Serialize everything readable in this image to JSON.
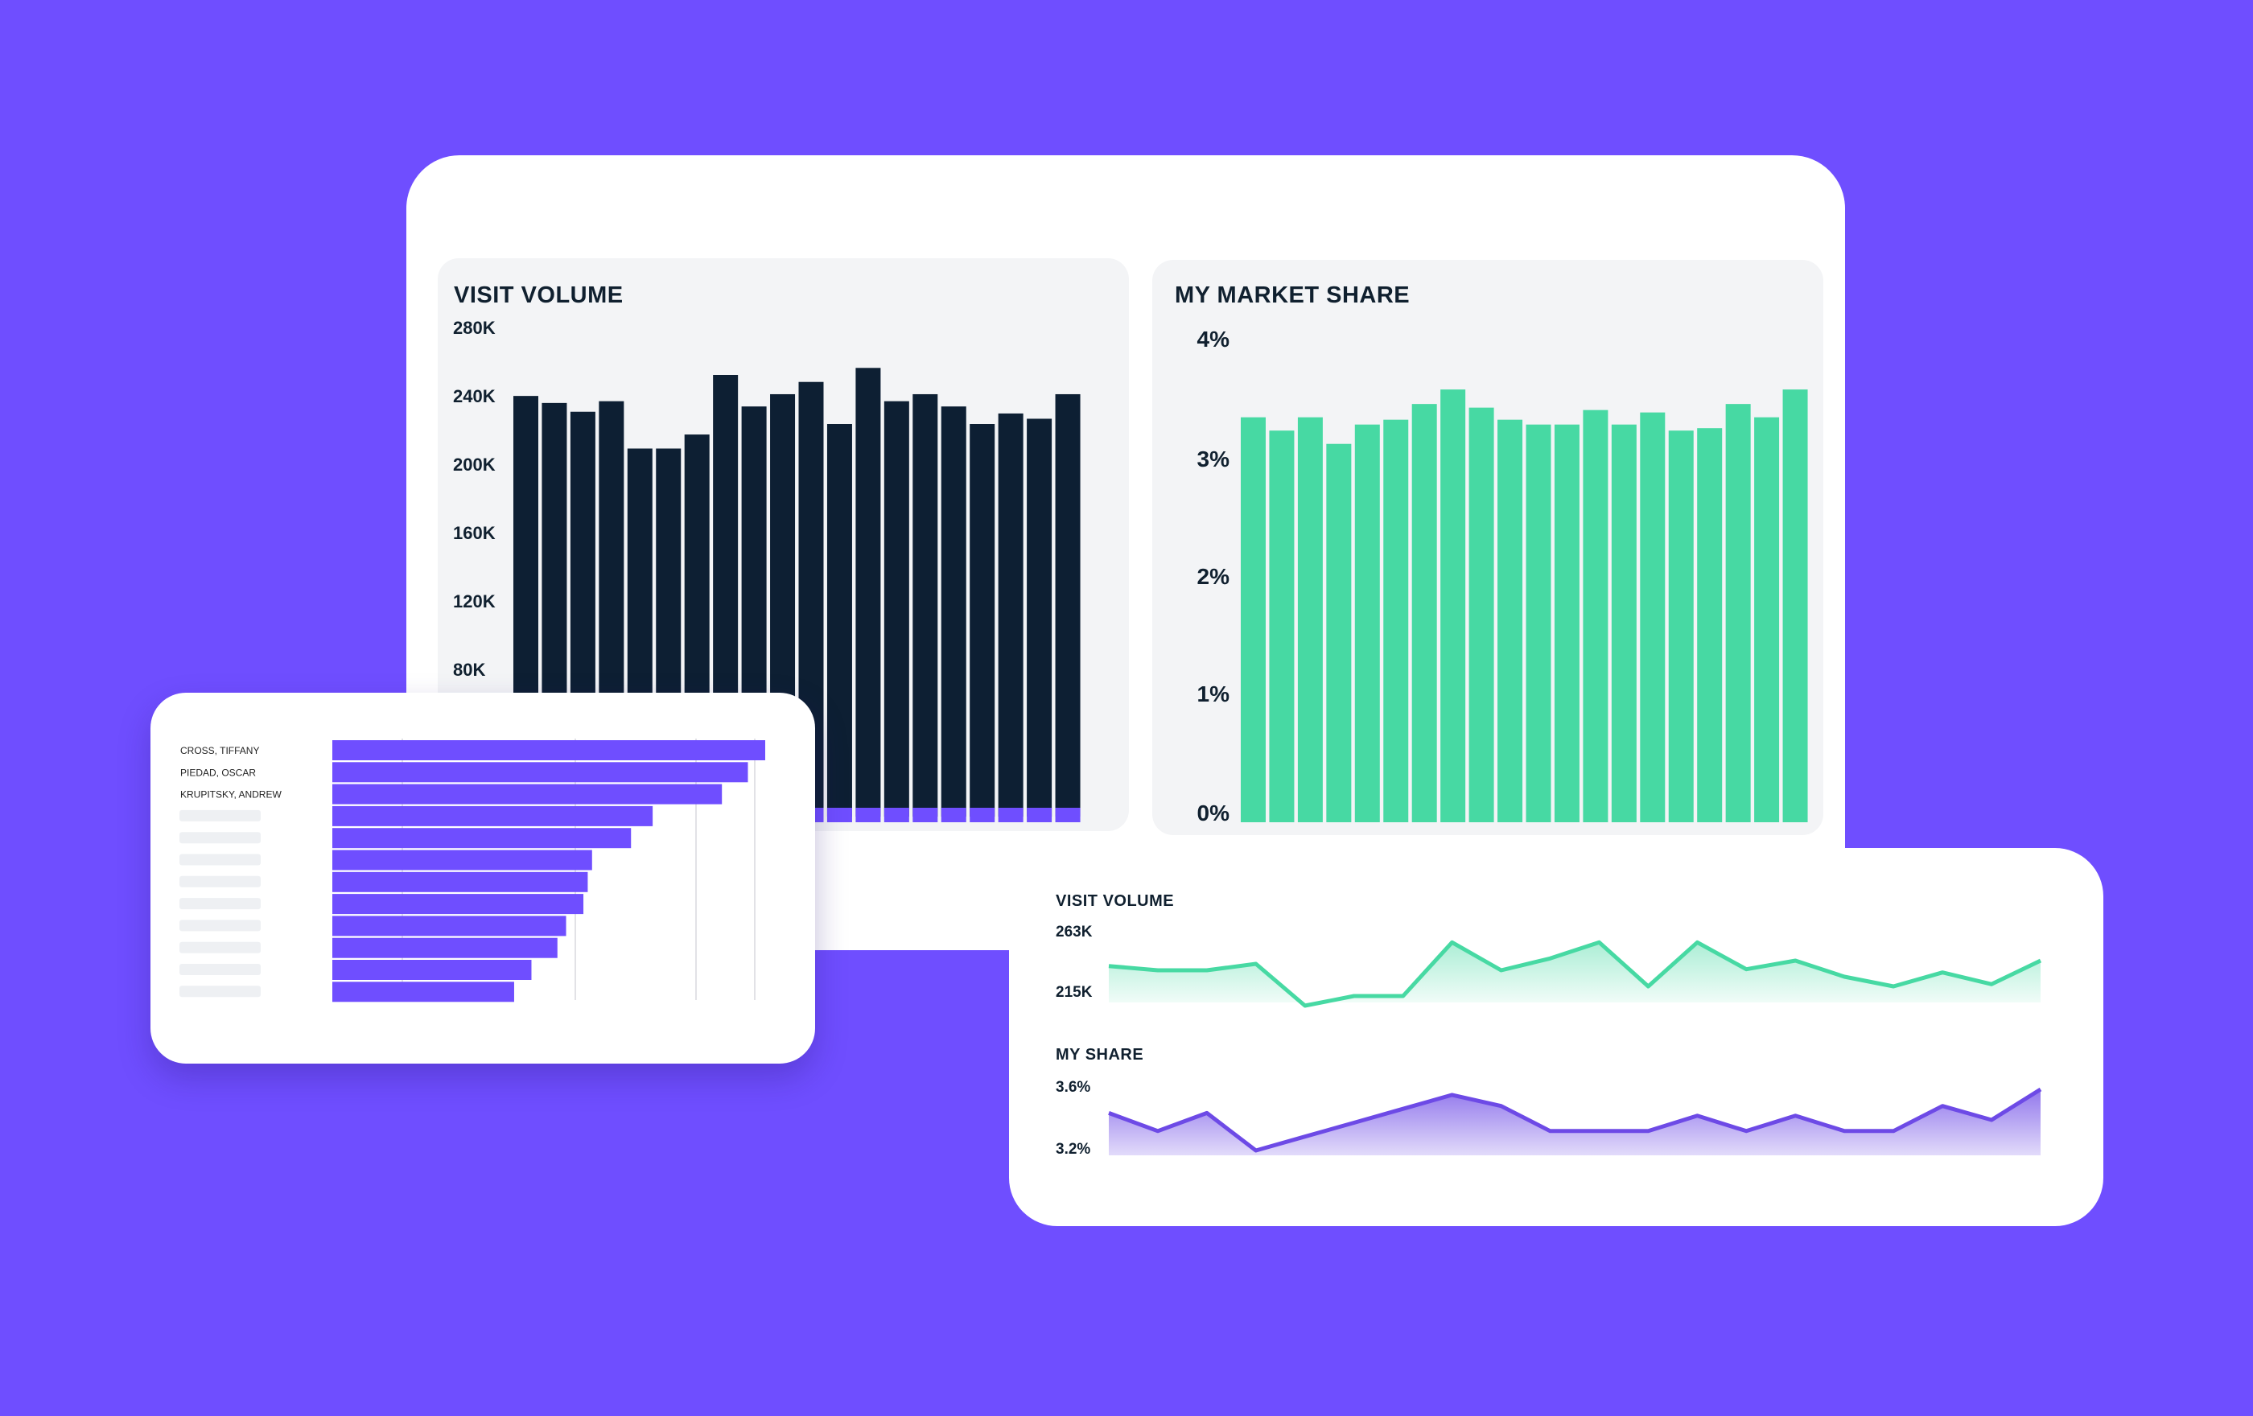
{
  "colors": {
    "background": "#6f4eff",
    "navy": "#0d1f33",
    "green": "#47d9a3",
    "purple": "#6f4eff",
    "trend_purple": "#6d4ae6"
  },
  "chart_data": [
    {
      "id": "visit-volume-bar",
      "type": "bar",
      "title": "VISIT VOLUME",
      "ytick_labels": [
        "280K",
        "240K",
        "200K",
        "160K",
        "120K",
        "80K"
      ],
      "ylim": [
        0,
        280000
      ],
      "values": [
        240000,
        236000,
        231000,
        237000,
        210000,
        210000,
        218000,
        252000,
        234000,
        241000,
        248000,
        224000,
        256000,
        237000,
        241000,
        234000,
        224000,
        230000,
        227000,
        241000
      ],
      "color": "#0d1f33"
    },
    {
      "id": "market-share-bar",
      "type": "bar",
      "title": "MY MARKET SHARE",
      "ytick_labels": [
        "4%",
        "3%",
        "2%",
        "1%",
        "0%"
      ],
      "ylim": [
        0,
        4
      ],
      "values": [
        3.35,
        3.24,
        3.35,
        3.13,
        3.29,
        3.33,
        3.46,
        3.58,
        3.43,
        3.33,
        3.29,
        3.29,
        3.41,
        3.29,
        3.39,
        3.24,
        3.26,
        3.46,
        3.35,
        3.58
      ],
      "color": "#47d9a3"
    },
    {
      "id": "leaderboard",
      "type": "bar",
      "orientation": "horizontal",
      "categories": [
        "CROSS, TIFFANY",
        "PIEDAD, OSCAR",
        "KRUPITSKY, ANDREW",
        "",
        "",
        "",
        "",
        "",
        "",
        "",
        "",
        ""
      ],
      "values": [
        100,
        96,
        90,
        74,
        69,
        60,
        59,
        58,
        54,
        52,
        46,
        42
      ],
      "color": "#6f4eff"
    },
    {
      "id": "visit-volume-trend",
      "type": "area",
      "title": "VISIT VOLUME",
      "ytick_labels": [
        "263K",
        "215K"
      ],
      "values": [
        240,
        236,
        236,
        242,
        203,
        212,
        212,
        262,
        236,
        247,
        262,
        221,
        262,
        237,
        245,
        230,
        221,
        234,
        223,
        245
      ],
      "ylim": [
        200,
        263
      ],
      "color": "#47d9a3"
    },
    {
      "id": "my-share-trend",
      "type": "area",
      "title": "MY SHARE",
      "ytick_labels": [
        "3.6%",
        "3.2%"
      ],
      "values": [
        3.385,
        3.32,
        3.385,
        3.25,
        3.3,
        3.35,
        3.4,
        3.45,
        3.41,
        3.32,
        3.32,
        3.32,
        3.375,
        3.32,
        3.375,
        3.32,
        3.32,
        3.41,
        3.36,
        3.47
      ],
      "ylim": [
        3.25,
        3.47
      ],
      "color": "#6d4ae6"
    }
  ]
}
